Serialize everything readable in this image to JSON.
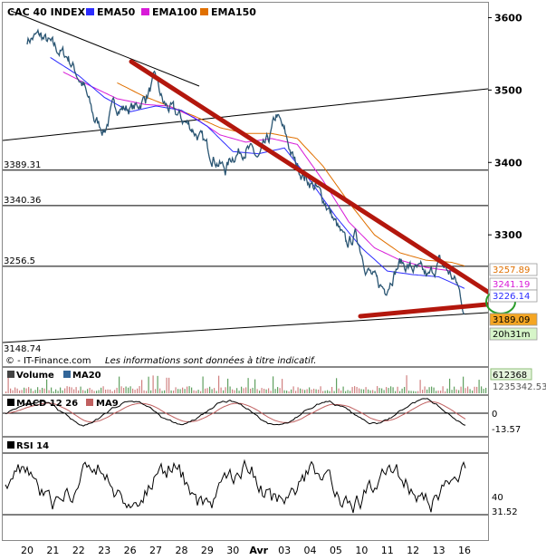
{
  "header": {
    "title": "CAC 40 INDEX",
    "legend": [
      {
        "label": "EMA50",
        "color": "#2c2cff"
      },
      {
        "label": "EMA100",
        "color": "#d81bd8"
      },
      {
        "label": "EMA150",
        "color": "#e07000"
      }
    ]
  },
  "footer": {
    "brand": "© - IT-Finance.com",
    "disclaimer": "Les informations sont données à titre indicatif."
  },
  "levels": [
    {
      "label": "3389.31",
      "value": 3389.31
    },
    {
      "label": "3340.36",
      "value": 3340.36
    },
    {
      "label": "3256.5",
      "value": 3256.5
    },
    {
      "label": "3148.74",
      "value": 3148.74
    }
  ],
  "badges": [
    {
      "label": "3257.89",
      "color": "#e07000",
      "fill": "#ffffff"
    },
    {
      "label": "3241.19",
      "color": "#d81bd8",
      "fill": "#ffffff"
    },
    {
      "label": "3226.14",
      "color": "#2c2cff",
      "fill": "#ffffff"
    },
    {
      "label": "3189.09",
      "color": "#000000",
      "fill": "#f5a623"
    },
    {
      "label": "20h31m",
      "color": "#000000",
      "fill": "#d6f5c8"
    }
  ],
  "volume_panel": {
    "title": "Volume",
    "ma_label": "MA20",
    "ma_color": "#336699",
    "values": [
      "612368",
      "1235342.53"
    ]
  },
  "macd_panel": {
    "title": "MACD 12 26",
    "signal_label": "MA9",
    "signal_color": "#c06060",
    "axis": [
      "0",
      "-13.57"
    ]
  },
  "rsi_panel": {
    "title": "RSI 14",
    "axis": [
      "40",
      "31.52"
    ]
  },
  "chart_data": {
    "type": "line",
    "title": "CAC 40 INDEX",
    "y_ticks": [
      3600,
      3500,
      3400,
      3300
    ],
    "ylim": [
      3140,
      3620
    ],
    "x_ticks": [
      "20",
      "21",
      "22",
      "23",
      "26",
      "27",
      "28",
      "29",
      "30",
      "Avr",
      "03",
      "04",
      "05",
      "10",
      "11",
      "12",
      "13",
      "16"
    ],
    "series": [
      {
        "name": "CAC 40 INDEX",
        "anchors": [
          [
            0,
            3570
          ],
          [
            0.5,
            3575
          ],
          [
            1,
            3560
          ],
          [
            1.6,
            3545
          ],
          [
            2.2,
            3505
          ],
          [
            2.6,
            3460
          ],
          [
            3.0,
            3445
          ],
          [
            3.4,
            3480
          ],
          [
            3.7,
            3475
          ],
          [
            4.2,
            3475
          ],
          [
            4.6,
            3490
          ],
          [
            5.0,
            3515
          ],
          [
            5.3,
            3480
          ],
          [
            5.7,
            3470
          ],
          [
            6.0,
            3460
          ],
          [
            6.4,
            3448
          ],
          [
            6.8,
            3430
          ],
          [
            7.2,
            3410
          ],
          [
            7.7,
            3390
          ],
          [
            8.0,
            3410
          ],
          [
            8.5,
            3420
          ],
          [
            9.0,
            3405
          ],
          [
            9.4,
            3430
          ],
          [
            9.7,
            3465
          ],
          [
            10.0,
            3440
          ],
          [
            10.4,
            3400
          ],
          [
            10.8,
            3380
          ],
          [
            11.2,
            3365
          ],
          [
            11.6,
            3345
          ],
          [
            12.0,
            3315
          ],
          [
            12.4,
            3285
          ],
          [
            12.8,
            3300
          ],
          [
            13.2,
            3255
          ],
          [
            13.6,
            3232
          ],
          [
            13.9,
            3225
          ],
          [
            14.2,
            3245
          ],
          [
            14.5,
            3262
          ],
          [
            14.9,
            3255
          ],
          [
            15.3,
            3248
          ],
          [
            15.6,
            3240
          ],
          [
            16.0,
            3262
          ],
          [
            16.4,
            3248
          ],
          [
            16.7,
            3232
          ],
          [
            16.9,
            3210
          ],
          [
            17.0,
            3189
          ]
        ]
      },
      {
        "name": "EMA50",
        "anchors": [
          [
            0.9,
            3545
          ],
          [
            2,
            3520
          ],
          [
            3,
            3490
          ],
          [
            4,
            3470
          ],
          [
            5,
            3478
          ],
          [
            6,
            3472
          ],
          [
            7,
            3450
          ],
          [
            8,
            3415
          ],
          [
            9,
            3412
          ],
          [
            10,
            3420
          ],
          [
            11,
            3375
          ],
          [
            12,
            3325
          ],
          [
            13,
            3282
          ],
          [
            14,
            3250
          ],
          [
            15,
            3245
          ],
          [
            16,
            3242
          ],
          [
            17,
            3226
          ]
        ]
      },
      {
        "name": "EMA100",
        "anchors": [
          [
            1.4,
            3525
          ],
          [
            2.5,
            3505
          ],
          [
            3.5,
            3488
          ],
          [
            4.6,
            3480
          ],
          [
            5.5,
            3478
          ],
          [
            6.5,
            3462
          ],
          [
            7.5,
            3438
          ],
          [
            8.5,
            3428
          ],
          [
            9.5,
            3433
          ],
          [
            10.5,
            3425
          ],
          [
            11.5,
            3375
          ],
          [
            12.5,
            3318
          ],
          [
            13.5,
            3282
          ],
          [
            14.5,
            3265
          ],
          [
            15.5,
            3255
          ],
          [
            16.5,
            3250
          ],
          [
            17,
            3241
          ]
        ]
      },
      {
        "name": "EMA150",
        "anchors": [
          [
            3.5,
            3510
          ],
          [
            4.5,
            3492
          ],
          [
            5.5,
            3478
          ],
          [
            6.5,
            3464
          ],
          [
            7.5,
            3448
          ],
          [
            8.5,
            3440
          ],
          [
            9.5,
            3440
          ],
          [
            10.5,
            3433
          ],
          [
            11.5,
            3395
          ],
          [
            12.5,
            3345
          ],
          [
            13.5,
            3300
          ],
          [
            14.5,
            3275
          ],
          [
            15.5,
            3265
          ],
          [
            16.5,
            3262
          ],
          [
            17,
            3257
          ]
        ]
      }
    ]
  }
}
